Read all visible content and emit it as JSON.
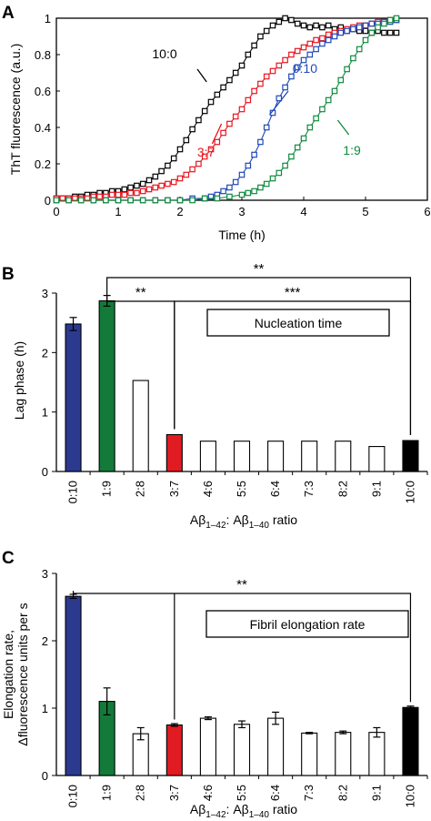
{
  "colors": {
    "black": "#000000",
    "red": "#e8141e",
    "blue": "#1f48b8",
    "green": "#0e8a3e",
    "blue_bar": "#2b3a8f",
    "green_bar": "#137a3a",
    "red_bar": "#e11b22",
    "black_bar": "#000000"
  },
  "chart_data": [
    {
      "panel": "A",
      "type": "line",
      "xlabel": "Time (h)",
      "ylabel": "ThT fluorescence (a.u.)",
      "xlim": [
        0,
        6
      ],
      "ylim": [
        0,
        1
      ],
      "xticks": [
        "0",
        "1",
        "2",
        "3",
        "4",
        "5",
        "6"
      ],
      "yticks": [
        "0",
        "0.2",
        "0.4",
        "0.6",
        "0.8",
        "1"
      ],
      "series": [
        {
          "name": "10:0",
          "color": "#000000",
          "x": [
            0.0,
            0.1,
            0.2,
            0.3,
            0.4,
            0.5,
            0.6,
            0.7,
            0.8,
            0.9,
            1.0,
            1.1,
            1.2,
            1.3,
            1.4,
            1.5,
            1.6,
            1.7,
            1.8,
            1.9,
            2.0,
            2.1,
            2.2,
            2.3,
            2.4,
            2.5,
            2.6,
            2.7,
            2.8,
            2.9,
            3.0,
            3.1,
            3.2,
            3.3,
            3.4,
            3.5,
            3.6,
            3.7,
            3.8,
            3.9,
            4.0,
            4.1,
            4.2,
            4.3,
            4.4,
            4.5,
            4.6,
            4.7,
            4.8,
            4.9,
            5.0,
            5.1,
            5.2,
            5.3,
            5.4,
            5.5
          ],
          "y": [
            0.01,
            0.01,
            0.01,
            0.02,
            0.02,
            0.03,
            0.03,
            0.04,
            0.04,
            0.05,
            0.05,
            0.06,
            0.07,
            0.08,
            0.09,
            0.11,
            0.13,
            0.16,
            0.19,
            0.23,
            0.28,
            0.33,
            0.39,
            0.44,
            0.49,
            0.54,
            0.58,
            0.62,
            0.66,
            0.7,
            0.74,
            0.8,
            0.85,
            0.9,
            0.93,
            0.96,
            0.98,
            1.0,
            0.99,
            0.97,
            0.96,
            0.95,
            0.96,
            0.95,
            0.96,
            0.94,
            0.95,
            0.93,
            0.94,
            0.93,
            0.93,
            0.92,
            0.93,
            0.92,
            0.92,
            0.92
          ]
        },
        {
          "name": "3:7",
          "color": "#e8141e",
          "x": [
            0.0,
            0.1,
            0.2,
            0.3,
            0.4,
            0.5,
            0.6,
            0.7,
            0.8,
            0.9,
            1.0,
            1.1,
            1.2,
            1.3,
            1.4,
            1.5,
            1.6,
            1.7,
            1.8,
            1.9,
            2.0,
            2.1,
            2.2,
            2.3,
            2.4,
            2.5,
            2.6,
            2.7,
            2.8,
            2.9,
            3.0,
            3.1,
            3.2,
            3.3,
            3.4,
            3.5,
            3.6,
            3.7,
            3.8,
            3.9,
            4.0,
            4.1,
            4.2,
            4.3,
            4.4,
            4.5,
            4.6,
            4.7,
            4.8,
            4.9,
            5.0,
            5.1,
            5.2,
            5.3,
            5.4,
            5.5
          ],
          "y": [
            0.01,
            0.01,
            0.01,
            0.01,
            0.01,
            0.01,
            0.02,
            0.02,
            0.02,
            0.03,
            0.03,
            0.03,
            0.04,
            0.04,
            0.05,
            0.06,
            0.07,
            0.08,
            0.09,
            0.1,
            0.12,
            0.14,
            0.17,
            0.2,
            0.24,
            0.28,
            0.32,
            0.37,
            0.42,
            0.46,
            0.5,
            0.55,
            0.6,
            0.64,
            0.68,
            0.71,
            0.74,
            0.77,
            0.8,
            0.82,
            0.84,
            0.86,
            0.88,
            0.89,
            0.91,
            0.92,
            0.93,
            0.94,
            0.95,
            0.96,
            0.96,
            0.97,
            0.98,
            0.98,
            0.99,
            0.99
          ]
        },
        {
          "name": "0:10",
          "color": "#1f48b8",
          "x": [
            0.0,
            0.2,
            0.4,
            0.6,
            0.8,
            1.0,
            1.2,
            1.4,
            1.6,
            1.8,
            2.0,
            2.2,
            2.4,
            2.5,
            2.6,
            2.7,
            2.8,
            2.9,
            3.0,
            3.1,
            3.2,
            3.3,
            3.4,
            3.5,
            3.6,
            3.7,
            3.8,
            3.9,
            4.0,
            4.1,
            4.2,
            4.3,
            4.4,
            4.5,
            4.6,
            4.7,
            4.8,
            4.9,
            5.0,
            5.1,
            5.2,
            5.3,
            5.4,
            5.5
          ],
          "y": [
            0.0,
            0.0,
            0.0,
            0.0,
            0.0,
            0.0,
            0.0,
            0.0,
            0.0,
            0.0,
            0.0,
            0.01,
            0.01,
            0.02,
            0.03,
            0.05,
            0.07,
            0.1,
            0.14,
            0.19,
            0.25,
            0.32,
            0.4,
            0.48,
            0.56,
            0.62,
            0.68,
            0.73,
            0.77,
            0.8,
            0.83,
            0.86,
            0.88,
            0.9,
            0.92,
            0.93,
            0.94,
            0.95,
            0.96,
            0.97,
            0.97,
            0.98,
            0.98,
            0.99
          ]
        },
        {
          "name": "1:9",
          "color": "#0e8a3e",
          "x": [
            0.0,
            0.2,
            0.4,
            0.6,
            0.8,
            1.0,
            1.2,
            1.4,
            1.6,
            1.8,
            2.0,
            2.2,
            2.4,
            2.6,
            2.8,
            3.0,
            3.1,
            3.2,
            3.3,
            3.4,
            3.5,
            3.6,
            3.7,
            3.8,
            3.9,
            4.0,
            4.1,
            4.2,
            4.3,
            4.4,
            4.5,
            4.6,
            4.7,
            4.8,
            4.9,
            5.0,
            5.1,
            5.2,
            5.3,
            5.4,
            5.5
          ],
          "y": [
            0.0,
            0.0,
            0.0,
            0.0,
            0.0,
            0.0,
            0.0,
            0.0,
            0.0,
            0.0,
            0.0,
            0.0,
            0.01,
            0.01,
            0.02,
            0.03,
            0.04,
            0.05,
            0.07,
            0.09,
            0.12,
            0.15,
            0.19,
            0.24,
            0.29,
            0.34,
            0.4,
            0.45,
            0.5,
            0.55,
            0.6,
            0.66,
            0.72,
            0.78,
            0.83,
            0.88,
            0.92,
            0.95,
            0.97,
            0.99,
            1.0
          ]
        }
      ],
      "annotations": [
        {
          "text": "10:0",
          "x": 2.35,
          "y": 0.63,
          "color": "#000000"
        },
        {
          "text": "3:7",
          "x": 2.5,
          "y": 0.25,
          "color": "#e8141e"
        },
        {
          "text": "0:10",
          "x": 3.65,
          "y": 0.7,
          "color": "#1f48b8"
        },
        {
          "text": "1:9",
          "x": 4.45,
          "y": 0.36,
          "color": "#0e8a3e"
        }
      ]
    },
    {
      "panel": "B",
      "type": "bar",
      "title": "Nucleation time",
      "ylabel": "Lag phase (h)",
      "xlabel_main": "Aβ",
      "xlabel_sub1": "1–42",
      "xlabel_colon": ":  Aβ",
      "xlabel_sub2": "1–40",
      "xlabel_tail": " ratio",
      "ylim": [
        0,
        3
      ],
      "yticks": [
        "0",
        "1",
        "2",
        "3"
      ],
      "categories": [
        "0:10",
        "1:9",
        "2:8",
        "3:7",
        "4:6",
        "5:5",
        "6:4",
        "7:3",
        "8:2",
        "9:1",
        "10:0"
      ],
      "values": [
        2.48,
        2.87,
        1.53,
        0.62,
        0.51,
        0.51,
        0.51,
        0.51,
        0.51,
        0.42,
        0.52
      ],
      "errors": [
        0.11,
        0.09,
        0,
        0,
        0,
        0,
        0,
        0,
        0,
        0,
        0
      ],
      "fills": [
        "#2b3a8f",
        "#137a3a",
        "#ffffff",
        "#e11b22",
        "#ffffff",
        "#ffffff",
        "#ffffff",
        "#ffffff",
        "#ffffff",
        "#ffffff",
        "#000000"
      ],
      "significance": [
        {
          "label": "**",
          "from": "1:9",
          "to": "10:0"
        },
        {
          "label": "**",
          "from": "1:9",
          "to": "3:7"
        },
        {
          "label": "***",
          "from": "3:7",
          "to": "10:0"
        }
      ]
    },
    {
      "panel": "C",
      "type": "bar",
      "title": "Fibril elongation rate",
      "ylabel_line1": "Elongation rate,",
      "ylabel_line2": "Δfluorescence units per s",
      "xlabel_main": "Aβ",
      "xlabel_sub1": "1–42",
      "xlabel_colon": ":  Aβ",
      "xlabel_sub2": "1–40",
      "xlabel_tail": " ratio",
      "ylim": [
        0,
        3
      ],
      "yticks": [
        "0",
        "1",
        "2",
        "3"
      ],
      "categories": [
        "0:10",
        "1:9",
        "2:8",
        "3:7",
        "4:6",
        "5:5",
        "6:4",
        "7:3",
        "8:2",
        "9:1",
        "10:0"
      ],
      "values": [
        2.66,
        1.1,
        0.62,
        0.75,
        0.85,
        0.76,
        0.85,
        0.63,
        0.64,
        0.64,
        1.01
      ],
      "errors": [
        0.03,
        0.2,
        0.09,
        0.02,
        0.02,
        0.05,
        0.09,
        0.01,
        0.02,
        0.07,
        0.02
      ],
      "fills": [
        "#2b3a8f",
        "#137a3a",
        "#ffffff",
        "#e11b22",
        "#ffffff",
        "#ffffff",
        "#ffffff",
        "#ffffff",
        "#ffffff",
        "#ffffff",
        "#000000"
      ],
      "significance": [
        {
          "label": "**",
          "from": "0:10",
          "to": "10:0"
        }
      ]
    }
  ],
  "panel_letters": [
    "A",
    "B",
    "C"
  ]
}
